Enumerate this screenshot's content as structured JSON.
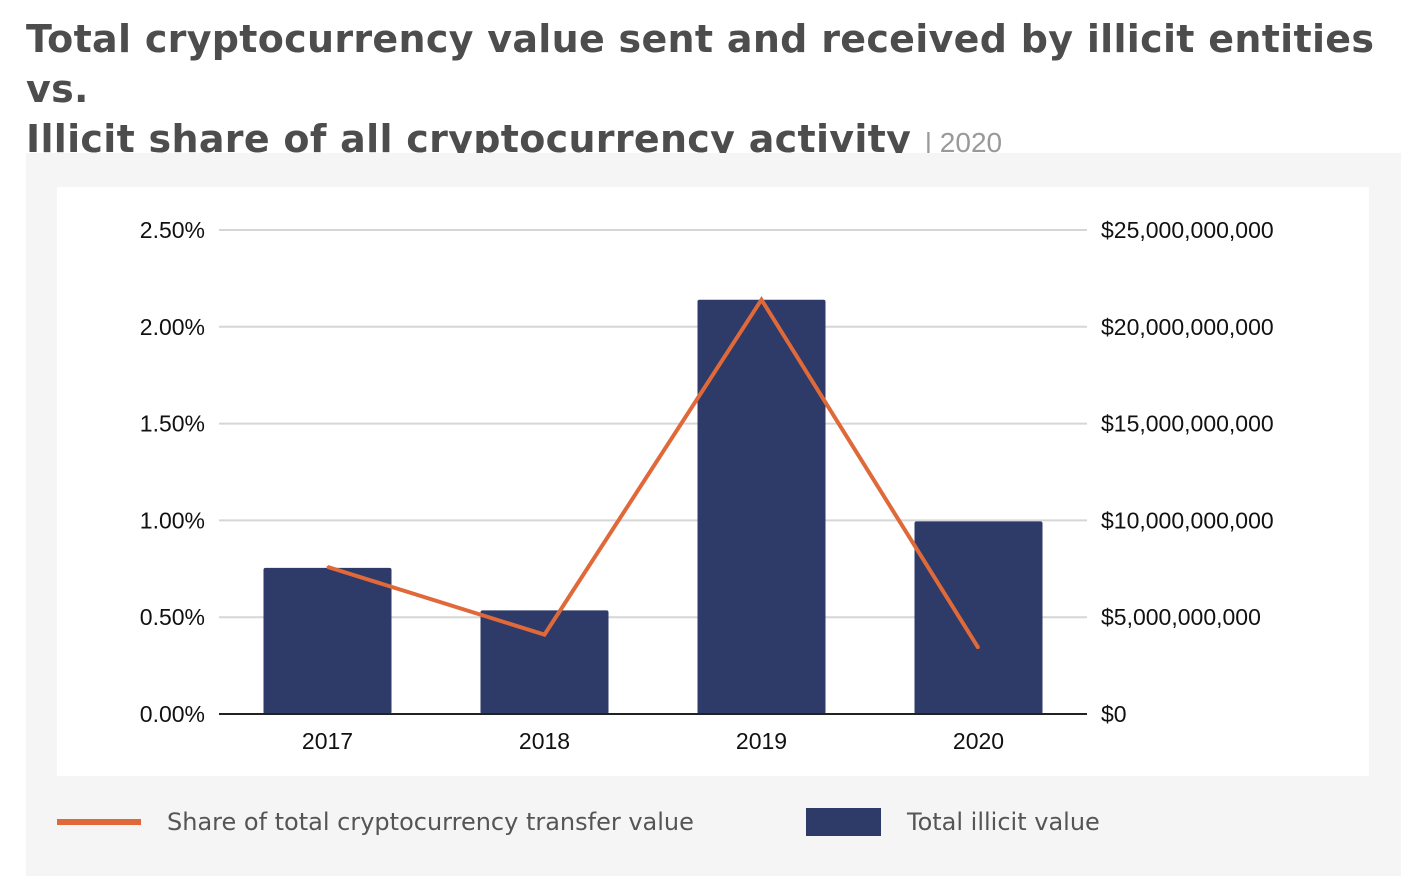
{
  "title": {
    "line1": "Total cryptocurrency value sent and received by illicit entities vs.",
    "line2": "Illicit share of all cryptocurrency activity",
    "year": "| 2020"
  },
  "colors": {
    "bar": "#2e3a68",
    "line": "#e0693a",
    "grid": "#d6d6d6",
    "axis": "#222222",
    "panel": "#f5f5f5",
    "title": "#4d4d4d"
  },
  "legend": {
    "line_label": "Share of total cryptocurrency transfer value",
    "bar_label": "Total illicit value"
  },
  "chart_data": {
    "type": "bar",
    "title": "Total cryptocurrency value sent and received by illicit entities vs. Illicit share of all cryptocurrency activity | 2020",
    "categories": [
      "2017",
      "2018",
      "2019",
      "2020"
    ],
    "series": [
      {
        "name": "Total illicit value",
        "type": "bar",
        "axis": "right",
        "values": [
          7550000000,
          5350000000,
          21400000000,
          9950000000
        ]
      },
      {
        "name": "Share of total cryptocurrency transfer value",
        "type": "line",
        "axis": "left",
        "values": [
          0.76,
          0.41,
          2.14,
          0.34
        ]
      }
    ],
    "y_left": {
      "range": [
        0,
        2.5
      ],
      "ticks": [
        0,
        0.5,
        1.0,
        1.5,
        2.0,
        2.5
      ],
      "tick_labels": [
        "0.00%",
        "0.50%",
        "1.00%",
        "1.50%",
        "2.00%",
        "2.50%"
      ]
    },
    "y_right": {
      "range": [
        0,
        25000000000
      ],
      "ticks": [
        0,
        5000000000,
        10000000000,
        15000000000,
        20000000000,
        25000000000
      ],
      "tick_labels": [
        "$0",
        "$5,000,000,000",
        "$10,000,000,000",
        "$15,000,000,000",
        "$20,000,000,000",
        "$25,000,000,000"
      ]
    },
    "xlabel": "",
    "ylabel": "",
    "grid": true,
    "legend_position": "bottom"
  }
}
